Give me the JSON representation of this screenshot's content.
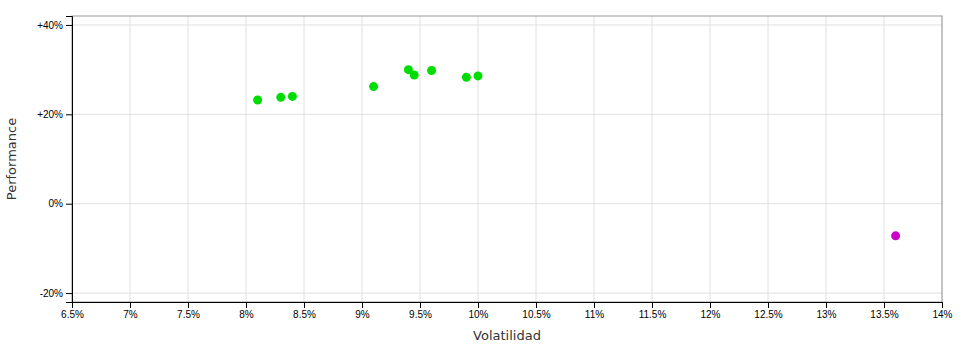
{
  "chart_data": {
    "type": "scatter",
    "xlabel": "Volatilidad",
    "ylabel": "Performance",
    "xlim": [
      0.065,
      0.14
    ],
    "ylim": [
      -0.22,
      0.42
    ],
    "xticks": [
      {
        "value": 0.065,
        "label": "6.5%"
      },
      {
        "value": 0.07,
        "label": "7%"
      },
      {
        "value": 0.075,
        "label": "7.5%"
      },
      {
        "value": 0.08,
        "label": "8%"
      },
      {
        "value": 0.085,
        "label": "8.5%"
      },
      {
        "value": 0.09,
        "label": "9%"
      },
      {
        "value": 0.095,
        "label": "9.5%"
      },
      {
        "value": 0.1,
        "label": "10%"
      },
      {
        "value": 0.105,
        "label": "10.5%"
      },
      {
        "value": 0.11,
        "label": "11%"
      },
      {
        "value": 0.115,
        "label": "11.5%"
      },
      {
        "value": 0.12,
        "label": "12%"
      },
      {
        "value": 0.125,
        "label": "12.5%"
      },
      {
        "value": 0.13,
        "label": "13%"
      },
      {
        "value": 0.135,
        "label": "13.5%"
      },
      {
        "value": 0.14,
        "label": "14%"
      }
    ],
    "yticks": [
      {
        "value": -0.2,
        "label": "-20%"
      },
      {
        "value": 0.0,
        "label": "0%"
      },
      {
        "value": 0.2,
        "label": "+20%"
      },
      {
        "value": 0.4,
        "label": "+40%"
      }
    ],
    "grid": true,
    "series": [
      {
        "color": "#00dd00",
        "marker": "circle",
        "x": [
          0.081,
          0.083,
          0.084,
          0.091,
          0.094,
          0.0945,
          0.096,
          0.099,
          0.1
        ],
        "values": [
          0.232,
          0.238,
          0.24,
          0.262,
          0.3,
          0.288,
          0.298,
          0.283,
          0.286
        ]
      },
      {
        "color": "#cc00cc",
        "marker": "circle",
        "x": [
          0.136
        ],
        "values": [
          -0.072
        ]
      }
    ]
  }
}
